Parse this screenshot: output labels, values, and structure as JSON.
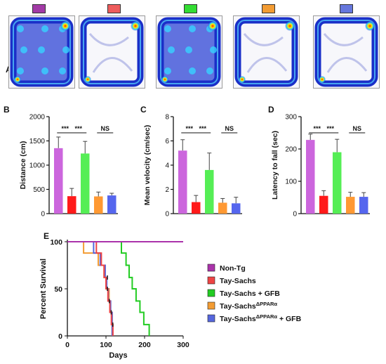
{
  "panel_labels": {
    "a": "A",
    "b": "B",
    "c": "C",
    "d": "D",
    "e": "E"
  },
  "groups": [
    {
      "name": "Non-Tg",
      "color": "#a23aa6"
    },
    {
      "name": "Tay-Sachs",
      "color": "#ee5c5c"
    },
    {
      "name": "Tay-Sachs + GFB",
      "color": "#33dd33"
    },
    {
      "name": "Tay-SachsΔPPARα",
      "color": "#f39c33"
    },
    {
      "name": "Tay-SachsΔPPARα + GFB",
      "color": "#6677dd"
    }
  ],
  "heatmap_panel": {
    "type": "occupancy heatmaps",
    "count": 5
  },
  "chart_data": [
    {
      "type": "bar",
      "panel": "B",
      "ylabel": "Distance (cm)",
      "ylim": [
        0,
        2000
      ],
      "yticks": [
        0,
        500,
        1000,
        1500,
        2000
      ],
      "values": [
        1350,
        360,
        1240,
        355,
        375
      ],
      "errors": [
        230,
        160,
        250,
        90,
        45
      ],
      "colors": [
        "#cc66dd",
        "#ff1a1a",
        "#55ee55",
        "#ff9933",
        "#5566ee"
      ],
      "significance": [
        "***",
        "***",
        "NS"
      ]
    },
    {
      "type": "bar",
      "panel": "C",
      "ylabel": "Mean velocity (cm/sec)",
      "ylim": [
        0,
        8
      ],
      "yticks": [
        0,
        2,
        4,
        6,
        8
      ],
      "values": [
        5.2,
        0.95,
        3.6,
        0.9,
        0.85
      ],
      "errors": [
        0.9,
        0.55,
        1.4,
        0.35,
        0.5
      ],
      "colors": [
        "#cc66dd",
        "#ff1a1a",
        "#55ee55",
        "#ff9933",
        "#5566ee"
      ],
      "significance": [
        "***",
        "***",
        "NS"
      ]
    },
    {
      "type": "bar",
      "panel": "D",
      "ylabel": "Latency to fall (sec)",
      "ylim": [
        0,
        300
      ],
      "yticks": [
        0,
        100,
        200,
        300
      ],
      "values": [
        228,
        55,
        190,
        52,
        52
      ],
      "errors": [
        18,
        16,
        40,
        14,
        13
      ],
      "colors": [
        "#cc66dd",
        "#ff1a1a",
        "#55ee55",
        "#ff9933",
        "#5566ee"
      ],
      "significance": [
        "***",
        "***",
        "NS"
      ]
    },
    {
      "type": "line",
      "subtype": "kaplan-meier",
      "panel": "E",
      "xlabel": "Days",
      "ylabel": "Percent Survival",
      "xlim": [
        0,
        300
      ],
      "ylim": [
        0,
        100
      ],
      "xticks": [
        0,
        100,
        200,
        300
      ],
      "yticks": [
        0,
        50,
        100
      ],
      "legend": {
        "position": "right",
        "entries": [
          "Non-Tg",
          "Tay-Sachs",
          "Tay-Sachs + GFB",
          "Tay-SachsΔPPARα",
          "Tay-SachsΔPPARα + GFB"
        ]
      },
      "series": [
        {
          "name": "Non-Tg",
          "color": "#aa33aa",
          "x": [
            0,
            300
          ],
          "y": [
            100,
            100
          ]
        },
        {
          "name": "Tay-Sachs",
          "color": "#ee4444",
          "x": [
            0,
            75,
            75,
            88,
            88,
            95,
            95,
            100,
            100,
            105,
            105,
            110,
            110,
            114,
            114,
            118,
            118
          ],
          "y": [
            100,
            100,
            88,
            88,
            75,
            75,
            62,
            62,
            50,
            50,
            37,
            37,
            25,
            25,
            12,
            12,
            0
          ]
        },
        {
          "name": "Tay-Sachs + GFB",
          "color": "#22cc22",
          "x": [
            0,
            140,
            140,
            152,
            152,
            160,
            160,
            168,
            168,
            178,
            178,
            188,
            188,
            198,
            198,
            212,
            212
          ],
          "y": [
            100,
            100,
            88,
            88,
            75,
            75,
            62,
            62,
            50,
            50,
            37,
            37,
            25,
            25,
            12,
            12,
            0
          ]
        },
        {
          "name": "Tay-SachsΔPPARα",
          "color": "#f39c33",
          "x": [
            0,
            42,
            42,
            80,
            80,
            95,
            95,
            100,
            100,
            108,
            108,
            112,
            112,
            116,
            116
          ],
          "y": [
            100,
            100,
            88,
            88,
            75,
            75,
            62,
            62,
            50,
            50,
            37,
            37,
            25,
            25,
            0
          ]
        },
        {
          "name": "Tay-SachsΔPPARα + GFB",
          "color": "#5566dd",
          "x": [
            0,
            68,
            68,
            85,
            85,
            98,
            98,
            102,
            102,
            106,
            106,
            112,
            112,
            116,
            116
          ],
          "y": [
            100,
            100,
            88,
            88,
            75,
            75,
            62,
            62,
            50,
            50,
            37,
            37,
            25,
            25,
            0
          ]
        }
      ]
    }
  ]
}
